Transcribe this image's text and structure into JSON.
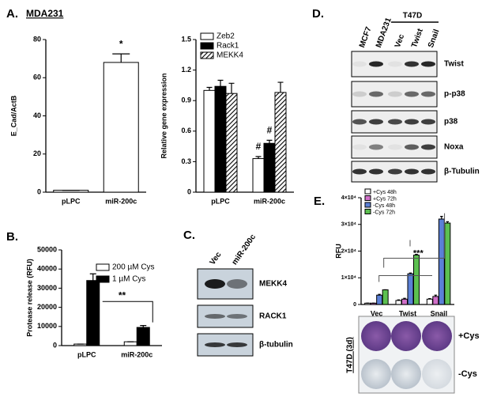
{
  "chart_data": [
    {
      "type": "bar",
      "panel_label": "A.",
      "title": "MDA231",
      "ylabel": "E_Cad/ActB",
      "categories": [
        "pLPC",
        "miR-200c"
      ],
      "values": [
        1,
        68
      ],
      "errors": [
        0,
        4.5
      ],
      "color": "#ffffff",
      "ylim": [
        0,
        80
      ],
      "yticks": [
        0,
        20,
        40,
        60,
        80
      ],
      "annotations": [
        "",
        "*"
      ]
    },
    {
      "type": "grouped-bar",
      "ylabel": "Relative gene expression",
      "legend": "top-left",
      "categories": [
        "pLPC",
        "miR-200c"
      ],
      "series": [
        {
          "name": "Zeb2",
          "color": "#ffffff",
          "values": [
            1.0,
            0.33
          ],
          "errors": [
            0.03,
            0.02
          ]
        },
        {
          "name": "Rack1",
          "color": "#000000",
          "values": [
            1.04,
            0.48
          ],
          "errors": [
            0.06,
            0.03
          ]
        },
        {
          "name": "MEKK4",
          "color": "#000000",
          "pattern": "diagonal-hatch",
          "values": [
            0.97,
            0.98
          ],
          "errors": [
            0.1,
            0.1
          ]
        }
      ],
      "ylim": [
        0,
        1.5
      ],
      "yticks": [
        0,
        0.3,
        0.6,
        0.9,
        1.2,
        1.5
      ],
      "annotations": [
        "#",
        "#"
      ]
    },
    {
      "type": "grouped-bar",
      "panel_label": "B.",
      "ylabel": "Protease release (RFU)",
      "legend": "top-right",
      "categories": [
        "pLPC",
        "miR-200c"
      ],
      "series": [
        {
          "name": "200 µM Cys",
          "color": "#ffffff",
          "values": [
            800,
            2000
          ],
          "errors": [
            0,
            0
          ]
        },
        {
          "name": "1 µM Cys",
          "color": "#000000",
          "values": [
            34000,
            9500
          ],
          "errors": [
            3500,
            1000
          ]
        }
      ],
      "ylim": [
        0,
        50000
      ],
      "yticks": [
        0,
        10000,
        20000,
        30000,
        40000,
        50000
      ],
      "annotations": [
        "**"
      ]
    },
    {
      "type": "grouped-bar",
      "panel_label": "E.",
      "ylabel": "RFU",
      "legend": "top-left",
      "categories": [
        "Vec",
        "Twist",
        "Snail"
      ],
      "series": [
        {
          "name": "+Cys 48h",
          "color": "#ffffff",
          "values": [
            500,
            1500,
            2000
          ],
          "errors": [
            0,
            200,
            200
          ]
        },
        {
          "name": "+Cys 72h",
          "color": "#d070c8",
          "values": [
            500,
            2000,
            3000
          ],
          "errors": [
            0,
            300,
            500
          ]
        },
        {
          "name": "-Cys 48h",
          "color": "#5b80d6",
          "values": [
            3500,
            11500,
            32000
          ],
          "errors": [
            300,
            300,
            1000
          ]
        },
        {
          "name": "-Cys 72h",
          "color": "#5cc050",
          "values": [
            5500,
            18500,
            30500
          ],
          "errors": [
            0,
            300,
            500
          ]
        }
      ],
      "ylim": [
        0,
        40000
      ],
      "yticks": [
        0,
        {
          "value": 10000,
          "label": "1×10⁴"
        },
        {
          "value": 20000,
          "label": "2×10⁴"
        },
        {
          "value": 30000,
          "label": "3×10⁴"
        },
        {
          "value": 40000,
          "label": "4×10⁴"
        }
      ],
      "annotations": [
        "***"
      ]
    }
  ],
  "blot_c": {
    "panel_label": "C.",
    "columns": [
      "Vec",
      "miR-200c"
    ],
    "rows": [
      "MEKK4",
      "RACK1",
      "β-tubulin"
    ]
  },
  "blot_d": {
    "panel_label": "D.",
    "group": "T47D",
    "columns": [
      "MCF7",
      "MDA231",
      "Vec",
      "Twist",
      "Snail"
    ],
    "rows": [
      "Twist",
      "p-p38",
      "p38",
      "Noxa",
      "β-Tubulin"
    ]
  },
  "plate_e": {
    "cell_line": "T47D (3d)",
    "rows": [
      "+Cys",
      "-Cys"
    ]
  }
}
